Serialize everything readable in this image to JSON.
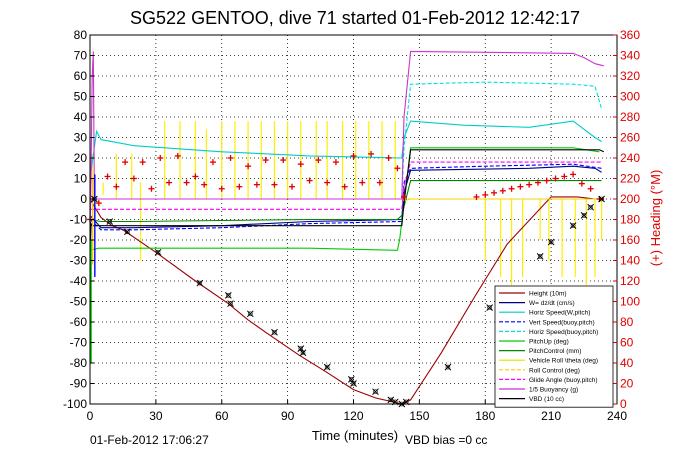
{
  "chart_data": {
    "type": "line",
    "title": "SG522 GENTOO, dive 71 started 01-Feb-2012 12:42:17",
    "xlabel": "Time (minutes)",
    "ylabel_right": "(+) Heading (°M)",
    "xlim": [
      0,
      240
    ],
    "ylim": [
      -100,
      80
    ],
    "ylim_right": [
      0,
      360
    ],
    "x_ticks": [
      0,
      30,
      60,
      90,
      120,
      150,
      180,
      210,
      240
    ],
    "y_ticks": [
      -100,
      -90,
      -80,
      -70,
      -60,
      -50,
      -40,
      -30,
      -20,
      -10,
      0,
      10,
      20,
      30,
      40,
      50,
      60,
      70,
      80
    ],
    "y_ticks_right": [
      0,
      20,
      40,
      60,
      80,
      100,
      120,
      140,
      160,
      180,
      200,
      220,
      240,
      260,
      280,
      300,
      320,
      340,
      360
    ],
    "grid": true,
    "legend_position": "bottom-right",
    "footer_left": "01-Feb-2012 17:06:27",
    "footer_right": "VBD bias =0 cc",
    "series": [
      {
        "name": "Height (10m)",
        "color": "#a00000",
        "style": "solid",
        "x": [
          0,
          5,
          10,
          15,
          30,
          48,
          63,
          72,
          80,
          95,
          107,
          120,
          130,
          138,
          142,
          146,
          160,
          175,
          190,
          210,
          222,
          230,
          234
        ],
        "y": [
          0,
          -9,
          -13,
          -15,
          -26,
          -40,
          -51,
          -59,
          -65,
          -76,
          -84,
          -93,
          -97,
          -99,
          -100,
          -98,
          -75,
          -48,
          -22,
          1,
          1,
          0,
          0
        ]
      },
      {
        "name": "W= dz/dt (cm/s)",
        "color": "#000080",
        "style": "solid",
        "x": [
          0,
          5,
          20,
          60,
          100,
          142,
          143,
          146,
          200,
          220,
          230,
          233
        ],
        "y": [
          -8,
          -14,
          -14,
          -13,
          -11,
          -10,
          3,
          14,
          15,
          16,
          15,
          13
        ]
      },
      {
        "name": "Horiz Speed(W,pitch)",
        "color": "#00cccc",
        "style": "solid",
        "x": [
          0,
          3,
          5,
          20,
          60,
          100,
          142,
          143,
          146,
          170,
          200,
          220,
          230,
          233
        ],
        "y": [
          10,
          33,
          29,
          26,
          23,
          21,
          20,
          30,
          38,
          36,
          35,
          38,
          30,
          28
        ]
      },
      {
        "name": "Vert Speed(buoy,pitch)",
        "color": "#0000ff",
        "style": "dashed",
        "x": [
          0,
          5,
          20,
          60,
          100,
          142,
          143,
          146,
          180,
          220,
          233
        ],
        "y": [
          -10,
          -15,
          -15,
          -14,
          -12,
          -11,
          8,
          15,
          16,
          17,
          15
        ]
      },
      {
        "name": "Horiz Speed(buoy,pitch)",
        "color": "#00e0e0",
        "style": "dashed",
        "x": [
          0,
          142,
          143,
          146,
          180,
          220,
          230,
          233
        ],
        "y": [
          0,
          0,
          25,
          56,
          57,
          56,
          55,
          44
        ]
      },
      {
        "name": "PitchUp (deg)",
        "color": "#00cc00",
        "style": "solid",
        "x": [
          0,
          4,
          20,
          100,
          140,
          141,
          146,
          220,
          232
        ],
        "y": [
          -25,
          -24,
          -24,
          -24,
          -25,
          -20,
          25,
          25,
          23
        ]
      },
      {
        "name": "PitchControl (mm)",
        "color": "#008800",
        "style": "solid",
        "x": [
          0,
          5,
          20,
          100,
          140,
          142,
          146,
          180,
          220,
          233
        ],
        "y": [
          -10,
          -11,
          -11,
          -10,
          -10,
          -8,
          9,
          9,
          9,
          9
        ]
      },
      {
        "name": "Vehicle Roll \\theta (deg)",
        "color": "#e0e000",
        "style": "solid",
        "x": [
          0,
          142,
          143,
          146,
          233
        ],
        "y": [
          0,
          0,
          -1,
          0,
          0
        ]
      },
      {
        "name": "Roll Control (deg)",
        "color": "#ffcc00",
        "style": "dashed",
        "x": [
          0,
          146,
          233
        ],
        "y": [
          0,
          0,
          0
        ]
      },
      {
        "name": "Glide Angle (buoy,pitch)",
        "color": "#ff00ff",
        "style": "dashed",
        "x": [
          0,
          142,
          143,
          146,
          233
        ],
        "y": [
          -5,
          -5,
          6,
          18,
          18
        ]
      },
      {
        "name": "1/5 Buoyancy (g)",
        "color": "#cc33cc",
        "style": "solid",
        "x": [
          0,
          0.5,
          1,
          1.5,
          2,
          142,
          143,
          146,
          220,
          225,
          230,
          234
        ],
        "y": [
          -20,
          15,
          60,
          72,
          0,
          0,
          40,
          72,
          71,
          69,
          66,
          65
        ]
      },
      {
        "name": "VBD (10 cc)",
        "color": "#000000",
        "style": "solid",
        "x": [
          0,
          0.5,
          1,
          142,
          143,
          146,
          232,
          234
        ],
        "y": [
          -30,
          -12,
          -13,
          -13,
          -2,
          24,
          24,
          23
        ]
      }
    ],
    "heading": {
      "name": "Heading",
      "color": "#e00000",
      "marker": "+",
      "x": [
        0,
        4,
        8,
        12,
        16,
        20,
        24,
        28,
        32,
        36,
        40,
        44,
        48,
        52,
        56,
        60,
        64,
        68,
        72,
        76,
        80,
        84,
        88,
        92,
        96,
        100,
        104,
        108,
        112,
        116,
        120,
        124,
        128,
        132,
        136,
        140,
        143,
        176,
        180,
        184,
        188,
        192,
        196,
        200,
        204,
        208,
        212,
        216,
        220,
        224,
        228,
        232
      ],
      "y": [
        180,
        196,
        222,
        212,
        236,
        220,
        236,
        210,
        240,
        216,
        242,
        216,
        222,
        214,
        236,
        210,
        240,
        212,
        232,
        214,
        238,
        214,
        238,
        212,
        234,
        218,
        238,
        216,
        236,
        212,
        242,
        216,
        244,
        216,
        240,
        230,
        202,
        202,
        204,
        206,
        208,
        210,
        212,
        214,
        216,
        218,
        220,
        222,
        224,
        215,
        210,
        200
      ]
    },
    "markers": {
      "name": "Depth markers",
      "color": "#000000",
      "marker": "x",
      "x": [
        2,
        9,
        17,
        31,
        50,
        63,
        64,
        73,
        84,
        96,
        97,
        108,
        119,
        120,
        130,
        137,
        139,
        142,
        144,
        163,
        182,
        205,
        210,
        220,
        225,
        228,
        233
      ],
      "y": [
        0,
        -11,
        -16,
        -26,
        -41,
        -47,
        -51,
        -56,
        -65,
        -73,
        -75,
        -82,
        -88,
        -90,
        -94,
        -98,
        -99,
        -100,
        -99,
        -82,
        -53,
        -28,
        -21,
        -13,
        -8,
        -4,
        0
      ]
    },
    "roll_spikes": {
      "color": "#ffee00",
      "up": [
        [
          1,
          8,
          22
        ],
        [
          6,
          2,
          8
        ],
        [
          12,
          0,
          22
        ],
        [
          19,
          0,
          22
        ],
        [
          23,
          -30,
          8
        ],
        [
          34,
          0,
          38
        ],
        [
          41,
          0,
          38
        ],
        [
          48,
          0,
          38
        ],
        [
          53,
          0,
          34
        ],
        [
          60,
          0,
          38
        ],
        [
          66,
          0,
          38
        ],
        [
          72,
          0,
          38
        ],
        [
          78,
          0,
          38
        ],
        [
          84,
          0,
          38
        ],
        [
          90,
          0,
          38
        ],
        [
          96,
          0,
          38
        ],
        [
          103,
          0,
          38
        ],
        [
          108,
          0,
          38
        ],
        [
          115,
          0,
          38
        ],
        [
          121,
          0,
          38
        ],
        [
          127,
          0,
          38
        ],
        [
          133,
          0,
          38
        ],
        [
          139,
          0,
          38
        ]
      ],
      "down": [
        [
          180,
          0,
          -30
        ],
        [
          187,
          0,
          -38
        ],
        [
          192,
          0,
          -42
        ],
        [
          197,
          0,
          -38
        ],
        [
          205,
          0,
          -20
        ],
        [
          209,
          0,
          -30
        ],
        [
          215,
          0,
          -38
        ],
        [
          221,
          0,
          -38
        ],
        [
          226,
          0,
          -42
        ],
        [
          230,
          0,
          -38
        ],
        [
          233,
          0,
          -20
        ]
      ]
    },
    "early_spikes": {
      "x": [
        0.5,
        1.2,
        2.2
      ],
      "ranges": [
        [
          -80,
          -20
        ],
        [
          -32,
          10
        ],
        [
          -38,
          12
        ]
      ],
      "colors": [
        "#00cc00",
        "#ffcc00",
        "#0000ff"
      ]
    },
    "legend_entries": [
      "Height (10m)",
      "W= dz/dt (cm/s)",
      "Horiz Speed(W,pitch)",
      "Vert Speed(buoy,pitch)",
      "Horiz Speed(buoy,pitch)",
      "PitchUp (deg)",
      "PitchControl (mm)",
      "Vehicle Roll \\theta (deg)",
      "Roll Control (deg)",
      "Glide Angle (buoy,pitch)",
      "1/5 Buoyancy (g)",
      "VBD (10 cc)"
    ]
  }
}
